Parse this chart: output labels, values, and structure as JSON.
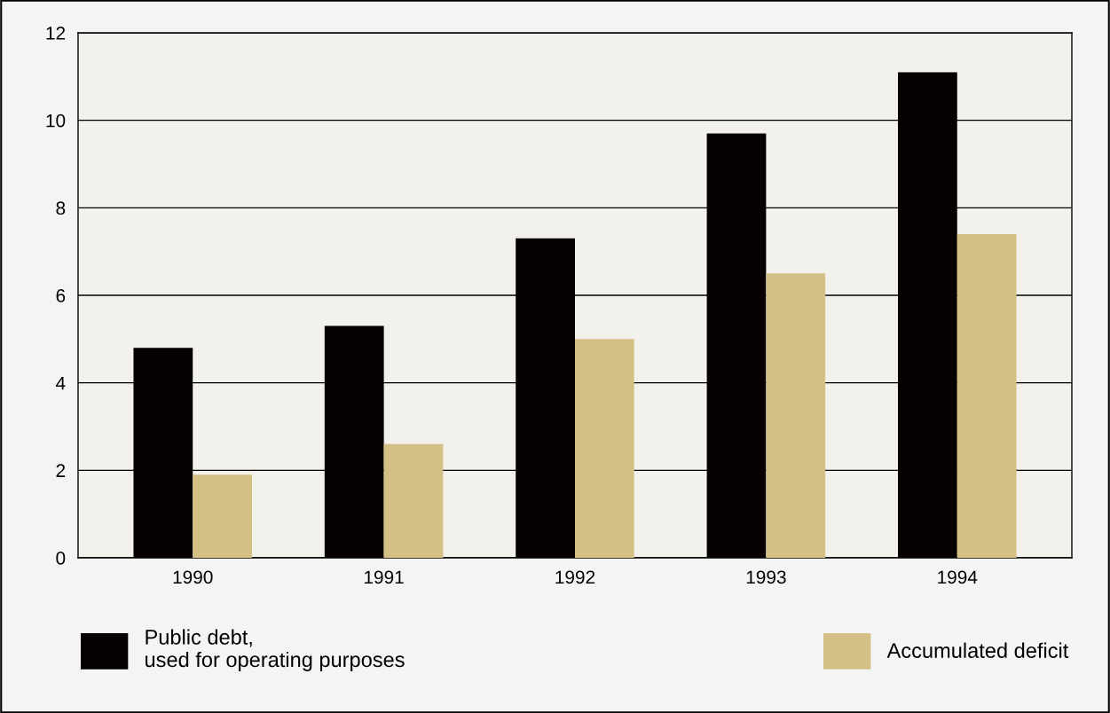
{
  "chart_data": {
    "type": "bar",
    "categories": [
      "1990",
      "1991",
      "1992",
      "1993",
      "1994"
    ],
    "series": [
      {
        "name": "Public debt,\nused for operating purposes",
        "color": "#060000",
        "values": [
          4.8,
          5.3,
          7.3,
          9.7,
          11.1
        ]
      },
      {
        "name": "Accumulated deficit",
        "color": "#d4bf85",
        "values": [
          1.9,
          2.6,
          5.0,
          6.5,
          7.4
        ]
      }
    ],
    "ylim": [
      0,
      12
    ],
    "yticks": [
      0,
      2,
      4,
      6,
      8,
      10,
      12
    ],
    "grid": "y",
    "legend": "bottom"
  }
}
